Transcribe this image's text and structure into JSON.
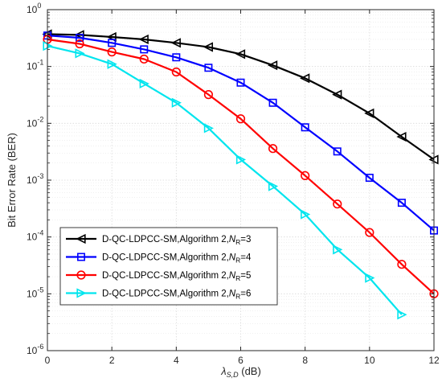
{
  "chart_data": {
    "type": "line",
    "xlabel": {
      "main": "λ",
      "sub": "S,D",
      "unit": " (dB)"
    },
    "ylabel": "Bit Error Rate (BER)",
    "xlim": [
      0,
      12
    ],
    "ylim": [
      1e-06,
      1
    ],
    "yscale": "log",
    "grid": true,
    "legend_position": "bottom-left",
    "x_ticks": [
      0,
      2,
      4,
      6,
      8,
      10,
      12
    ],
    "y_ticks": [
      {
        "value": 1,
        "base": "10",
        "exp": "0"
      },
      {
        "value": 0.1,
        "base": "10",
        "exp": "-1"
      },
      {
        "value": 0.01,
        "base": "10",
        "exp": "-2"
      },
      {
        "value": 0.001,
        "base": "10",
        "exp": "-3"
      },
      {
        "value": 0.0001,
        "base": "10",
        "exp": "-4"
      },
      {
        "value": 1e-05,
        "base": "10",
        "exp": "-5"
      },
      {
        "value": 1e-06,
        "base": "10",
        "exp": "-6"
      }
    ],
    "series": [
      {
        "name": "D-QC-LDPCC-SM,Algorithm 2,N_R=3",
        "label_main": "D-QC-LDPCC-SM,Algorithm 2,",
        "label_var": "N",
        "label_sub": "R",
        "label_tail": "=3",
        "color": "#000000",
        "marker": "triangle-left",
        "x": [
          0,
          1,
          2,
          3,
          4,
          5,
          6,
          7,
          8,
          9,
          10,
          11,
          12
        ],
        "y": [
          0.37,
          0.36,
          0.33,
          0.3,
          0.26,
          0.22,
          0.165,
          0.105,
          0.062,
          0.032,
          0.015,
          0.0058,
          0.0023
        ]
      },
      {
        "name": "D-QC-LDPCC-SM,Algorithm 2,N_R=4",
        "label_main": "D-QC-LDPCC-SM,Algorithm 2,",
        "label_var": "N",
        "label_sub": "R",
        "label_tail": "=4",
        "color": "#0000ff",
        "marker": "square",
        "x": [
          0,
          1,
          2,
          3,
          4,
          5,
          6,
          7,
          8,
          9,
          10,
          11,
          12
        ],
        "y": [
          0.35,
          0.32,
          0.26,
          0.2,
          0.145,
          0.095,
          0.052,
          0.023,
          0.0085,
          0.0032,
          0.0011,
          0.0004,
          0.00013
        ]
      },
      {
        "name": "D-QC-LDPCC-SM,Algorithm 2,N_R=5",
        "label_main": "D-QC-LDPCC-SM,Algorithm 2,",
        "label_var": "N",
        "label_sub": "R",
        "label_tail": "=5",
        "color": "#ff0000",
        "marker": "circle",
        "x": [
          0,
          1,
          2,
          3,
          4,
          5,
          6,
          7,
          8,
          9,
          10,
          11,
          12
        ],
        "y": [
          0.3,
          0.25,
          0.18,
          0.135,
          0.08,
          0.032,
          0.012,
          0.0036,
          0.0012,
          0.00038,
          0.00012,
          3.3e-05,
          1e-05
        ]
      },
      {
        "name": "D-QC-LDPCC-SM,Algorithm 2,N_R=6",
        "label_main": "D-QC-LDPCC-SM,Algorithm 2,",
        "label_var": "N",
        "label_sub": "R",
        "label_tail": "=6",
        "color": "#00e5ee",
        "marker": "triangle-right",
        "x": [
          0,
          1,
          2,
          3,
          4,
          5,
          6,
          7,
          8,
          9,
          10,
          11
        ],
        "y": [
          0.23,
          0.17,
          0.11,
          0.05,
          0.023,
          0.0082,
          0.0023,
          0.00078,
          0.00025,
          6e-05,
          1.9e-05,
          4.3e-06
        ]
      }
    ]
  }
}
